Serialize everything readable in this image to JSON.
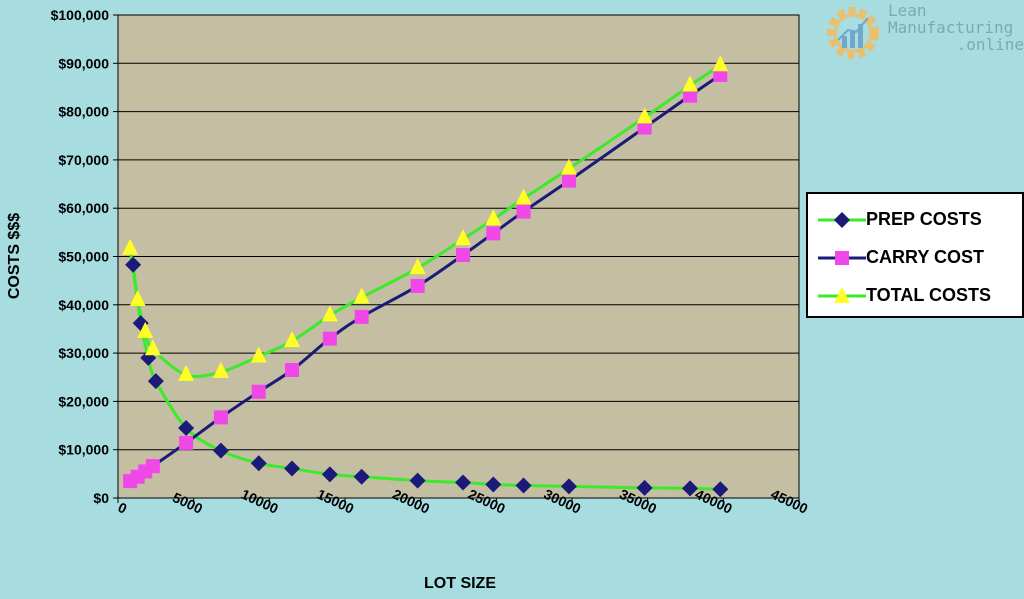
{
  "chart_data": {
    "type": "line",
    "title": "",
    "xlabel": "LOT SIZE",
    "ylabel": "COSTS $$$",
    "xlim": [
      0,
      45000
    ],
    "ylim": [
      0,
      100000
    ],
    "x_ticks": [
      0,
      5000,
      10000,
      15000,
      20000,
      25000,
      30000,
      35000,
      40000,
      45000
    ],
    "x_tick_labels": [
      "0",
      "5000",
      "10000",
      "15000",
      "20000",
      "25000",
      "30000",
      "35000",
      "40000",
      "45000"
    ],
    "y_ticks": [
      0,
      10000,
      20000,
      30000,
      40000,
      50000,
      60000,
      70000,
      80000,
      90000,
      100000
    ],
    "y_tick_labels": [
      "$0",
      "$10,000",
      "$20,000",
      "$30,000",
      "$40,000",
      "$50,000",
      "$60,000",
      "$70,000",
      "$80,000",
      "$90,000",
      "$100,000"
    ],
    "grid": "horizontal",
    "legend_position": "right",
    "background_color": "#c4bea3",
    "series": [
      {
        "name": "PREP COSTS",
        "marker": "diamond",
        "line_color": "#3dea2a",
        "marker_color": "#1c1a78",
        "points": [
          [
            1000,
            48300
          ],
          [
            1500,
            36200
          ],
          [
            2000,
            29000
          ],
          [
            2500,
            24200
          ],
          [
            4500,
            14500
          ],
          [
            6800,
            9800
          ],
          [
            9300,
            7200
          ],
          [
            11500,
            6100
          ],
          [
            14000,
            4900
          ],
          [
            16100,
            4400
          ],
          [
            19800,
            3600
          ],
          [
            22800,
            3200
          ],
          [
            24800,
            2800
          ],
          [
            26800,
            2600
          ],
          [
            29800,
            2400
          ],
          [
            34800,
            2100
          ],
          [
            37800,
            2000
          ],
          [
            39800,
            1800
          ]
        ]
      },
      {
        "name": "CARRY COST",
        "marker": "square",
        "line_color": "#1c1a78",
        "marker_color": "#f048e8",
        "points": [
          [
            800,
            3500
          ],
          [
            1300,
            4400
          ],
          [
            1800,
            5500
          ],
          [
            2300,
            6600
          ],
          [
            4500,
            11400
          ],
          [
            6800,
            16700
          ],
          [
            9300,
            22000
          ],
          [
            11500,
            26500
          ],
          [
            14000,
            33000
          ],
          [
            16100,
            37500
          ],
          [
            19800,
            43900
          ],
          [
            22800,
            50300
          ],
          [
            24800,
            54800
          ],
          [
            26800,
            59300
          ],
          [
            29800,
            65700
          ],
          [
            34800,
            76700
          ],
          [
            37800,
            83300
          ],
          [
            39800,
            87600
          ]
        ]
      },
      {
        "name": "TOTAL COSTS",
        "marker": "triangle",
        "line_color": "#3dea2a",
        "marker_color": "#ffff26",
        "points": [
          [
            800,
            51600
          ],
          [
            1300,
            41000
          ],
          [
            1800,
            34400
          ],
          [
            2300,
            30800
          ],
          [
            4500,
            25500
          ],
          [
            6800,
            26100
          ],
          [
            9300,
            29300
          ],
          [
            11500,
            32500
          ],
          [
            14000,
            37800
          ],
          [
            16100,
            41500
          ],
          [
            19800,
            47600
          ],
          [
            22800,
            53600
          ],
          [
            24800,
            57700
          ],
          [
            26800,
            62000
          ],
          [
            29800,
            68200
          ],
          [
            34800,
            78800
          ],
          [
            37800,
            85400
          ],
          [
            39800,
            89600
          ]
        ]
      }
    ]
  },
  "logo": {
    "line1": "Lean",
    "line2": "Manufacturing",
    "line3": ".online"
  }
}
